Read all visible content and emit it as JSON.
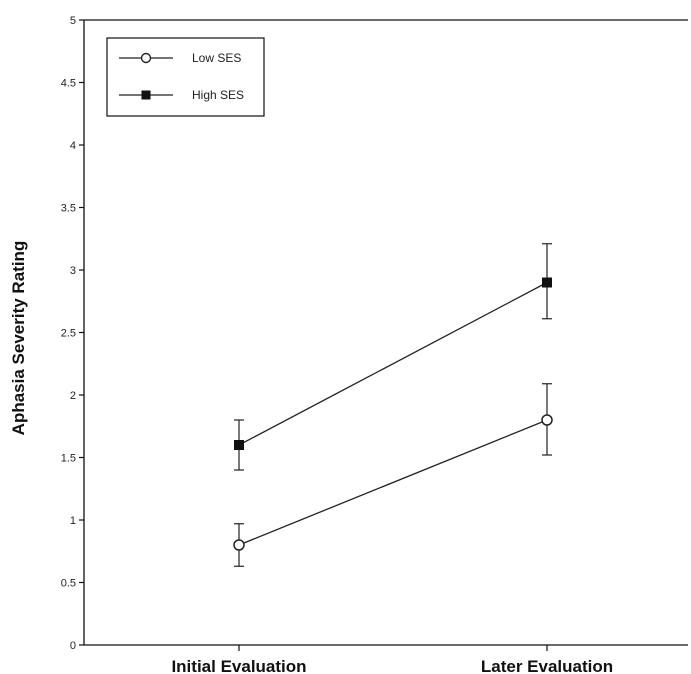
{
  "chart_data": {
    "type": "line",
    "title": "",
    "xlabel": "",
    "ylabel": "Aphasia Severity Rating",
    "categories": [
      "Initial Evaluation",
      "Later Evaluation"
    ],
    "ylim": [
      0,
      5
    ],
    "yticks": [
      "0",
      "0.5",
      "1",
      "1.5",
      "2",
      "2.5",
      "3",
      "3.5",
      "4",
      "4.5",
      "5"
    ],
    "grid": false,
    "legend_position": "top-left",
    "series": [
      {
        "name": "Low SES",
        "marker": "open-circle",
        "values": [
          0.8,
          1.8
        ],
        "error_low": [
          0.63,
          1.52
        ],
        "error_high": [
          0.97,
          2.09
        ]
      },
      {
        "name": "High SES",
        "marker": "filled-square",
        "values": [
          1.6,
          2.9
        ],
        "error_low": [
          1.4,
          2.61
        ],
        "error_high": [
          1.8,
          3.21
        ]
      }
    ]
  }
}
